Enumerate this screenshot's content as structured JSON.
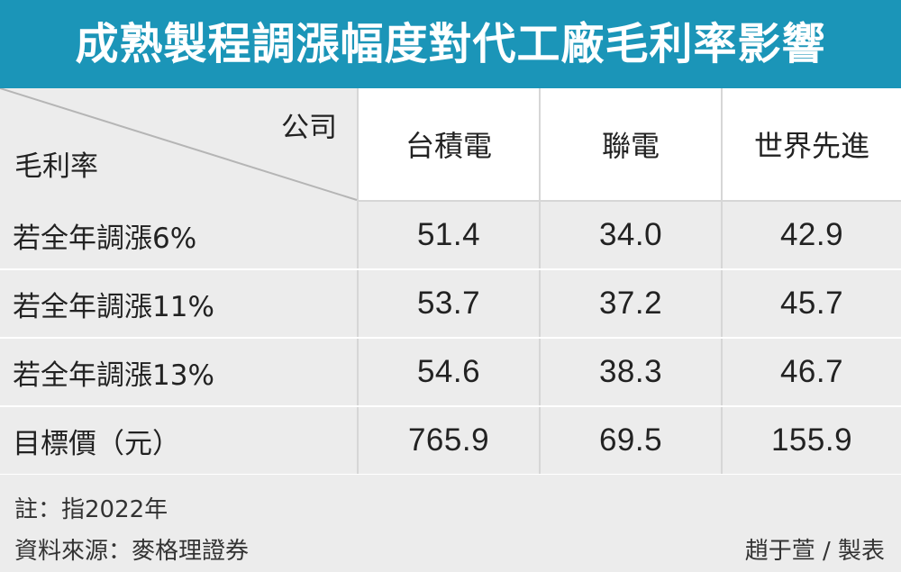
{
  "header": {
    "title": "成熟製程調漲幅度對代工廠毛利率影響"
  },
  "table": {
    "corner": {
      "company_label": "公司",
      "metric_label": "毛利率"
    },
    "columns": [
      "台積電",
      "聯電",
      "世界先進"
    ],
    "rows": [
      {
        "label": "若全年調漲6%",
        "values": [
          "51.4",
          "34.0",
          "42.9"
        ]
      },
      {
        "label": "若全年調漲11%",
        "values": [
          "53.7",
          "37.2",
          "45.7"
        ]
      },
      {
        "label": "若全年調漲13%",
        "values": [
          "54.6",
          "38.3",
          "46.7"
        ]
      },
      {
        "label": "目標價（元）",
        "values": [
          "765.9",
          "69.5",
          "155.9"
        ]
      }
    ]
  },
  "footer": {
    "note": "註：指2022年",
    "source": "資料來源：麥格理證券",
    "credit": "趙于萱 / 製表"
  },
  "colors": {
    "title_bar": "#1b95b8",
    "row_background": "#ececec",
    "text": "#222222"
  },
  "chart_data": {
    "type": "table",
    "title": "成熟製程調漲幅度對代工廠毛利率影響",
    "row_header": "毛利率",
    "column_header": "公司",
    "columns": [
      "台積電",
      "聯電",
      "世界先進"
    ],
    "rows": [
      {
        "label": "若全年調漲6%",
        "values": [
          51.4,
          34.0,
          42.9
        ]
      },
      {
        "label": "若全年調漲11%",
        "values": [
          53.7,
          37.2,
          45.7
        ]
      },
      {
        "label": "若全年調漲13%",
        "values": [
          54.6,
          38.3,
          46.7
        ]
      },
      {
        "label": "目標價（元）",
        "values": [
          765.9,
          69.5,
          155.9
        ]
      }
    ],
    "notes": [
      "註：指2022年",
      "資料來源：麥格理證券",
      "趙于萱 / 製表"
    ]
  }
}
